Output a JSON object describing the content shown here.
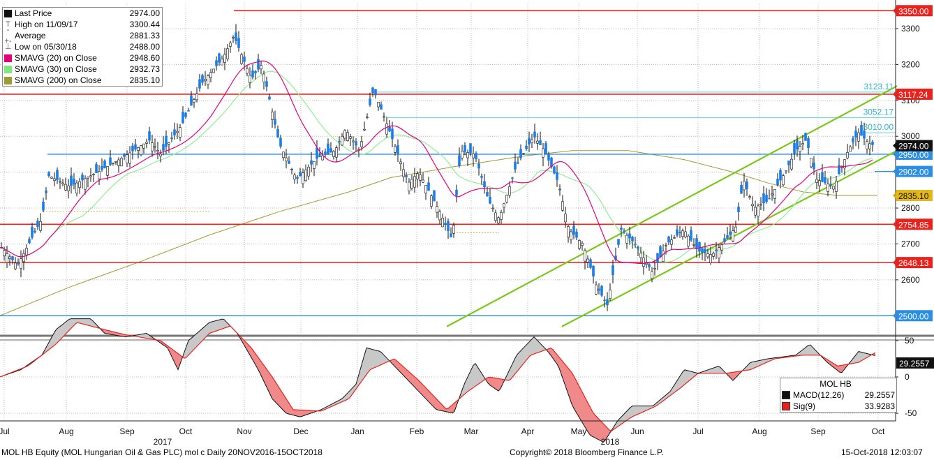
{
  "legend": [
    {
      "label": "Last Price",
      "value": "2974.00",
      "swatch": "#111111",
      "glyph": ""
    },
    {
      "label": "High on 11/09/17",
      "value": "3300.44",
      "swatch": "",
      "glyph": "T"
    },
    {
      "label": "Average",
      "value": "2881.33",
      "swatch": "",
      "glyph": "-+-"
    },
    {
      "label": "Low on 05/30/18",
      "value": "2488.00",
      "swatch": "",
      "glyph": "⊥"
    },
    {
      "label": "SMAVG (20)  on Close",
      "value": "2948.60",
      "swatch": "#e6007e",
      "glyph": ""
    },
    {
      "label": "SMAVG (30)  on Close",
      "value": "2932.73",
      "swatch": "#7ee87e",
      "glyph": ""
    },
    {
      "label": "SMAVG (200)  on Close",
      "value": "2835.10",
      "swatch": "#a09a32",
      "glyph": ""
    }
  ],
  "macd_box": {
    "title": "MOL HB",
    "rows": [
      {
        "label": "MACD(12,26)",
        "value": "29.2557",
        "color": "#111111"
      },
      {
        "label": "Sig(9)",
        "value": "33.9283",
        "color": "#e8231e"
      }
    ]
  },
  "footer": {
    "left": "MOL HB Equity (MOL Hungarian Oil & Gas PLC) mol c  Daily 20NOV2016-15OCT2018",
    "center": "Copyright© 2018 Bloomberg Finance L.P.",
    "right": "15-Oct-2018 12:03:07"
  },
  "chart_data": {
    "type": "candlestick",
    "x_months": [
      "Jul",
      "Aug",
      "Sep",
      "Oct",
      "Nov",
      "Dec",
      "Jan",
      "Feb",
      "Mar",
      "Apr",
      "May",
      "Jun",
      "Jul",
      "Aug",
      "Sep",
      "Oct"
    ],
    "x_years": [
      "2017",
      "2018"
    ],
    "ylim": [
      2450,
      3370
    ],
    "y_ticks": [
      2500,
      2600,
      2700,
      2800,
      2900,
      3000,
      3100,
      3200,
      3300
    ],
    "price_path": [
      [
        0,
        2695
      ],
      [
        25,
        2640
      ],
      [
        60,
        2770
      ],
      [
        70,
        2890
      ],
      [
        100,
        2860
      ],
      [
        140,
        2900
      ],
      [
        175,
        2940
      ],
      [
        215,
        2990
      ],
      [
        230,
        2950
      ],
      [
        260,
        3030
      ],
      [
        290,
        3150
      ],
      [
        320,
        3220
      ],
      [
        335,
        3280
      ],
      [
        360,
        3160
      ],
      [
        375,
        3200
      ],
      [
        400,
        2980
      ],
      [
        425,
        2880
      ],
      [
        455,
        2940
      ],
      [
        480,
        2960
      ],
      [
        495,
        3020
      ],
      [
        515,
        2960
      ],
      [
        535,
        3130
      ],
      [
        555,
        3030
      ],
      [
        570,
        2950
      ],
      [
        585,
        2870
      ],
      [
        600,
        2900
      ],
      [
        630,
        2790
      ],
      [
        648,
        2710
      ],
      [
        660,
        2960
      ],
      [
        680,
        2950
      ],
      [
        700,
        2820
      ],
      [
        715,
        2770
      ],
      [
        740,
        2920
      ],
      [
        765,
        3000
      ],
      [
        780,
        2960
      ],
      [
        800,
        2870
      ],
      [
        815,
        2740
      ],
      [
        835,
        2700
      ],
      [
        855,
        2580
      ],
      [
        870,
        2530
      ],
      [
        890,
        2740
      ],
      [
        910,
        2700
      ],
      [
        935,
        2620
      ],
      [
        955,
        2700
      ],
      [
        980,
        2740
      ],
      [
        1000,
        2680
      ],
      [
        1020,
        2670
      ],
      [
        1040,
        2710
      ],
      [
        1055,
        2750
      ],
      [
        1065,
        2880
      ],
      [
        1080,
        2800
      ],
      [
        1100,
        2820
      ],
      [
        1125,
        2900
      ],
      [
        1140,
        2960
      ],
      [
        1155,
        2990
      ],
      [
        1170,
        2880
      ],
      [
        1195,
        2860
      ],
      [
        1215,
        2960
      ],
      [
        1230,
        3010
      ],
      [
        1245,
        2980
      ],
      [
        1253,
        2974
      ]
    ],
    "sma200_path": [
      [
        0,
        2500
      ],
      [
        100,
        2580
      ],
      [
        200,
        2650
      ],
      [
        300,
        2725
      ],
      [
        400,
        2790
      ],
      [
        500,
        2845
      ],
      [
        560,
        2885
      ],
      [
        650,
        2915
      ],
      [
        750,
        2945
      ],
      [
        820,
        2960
      ],
      [
        900,
        2960
      ],
      [
        980,
        2935
      ],
      [
        1050,
        2900
      ],
      [
        1100,
        2870
      ],
      [
        1150,
        2845
      ],
      [
        1200,
        2835
      ],
      [
        1255,
        2835
      ]
    ],
    "horizontal_levels": [
      {
        "value": 3350,
        "label": "3350.00",
        "color": "#e8231e"
      },
      {
        "value": 3117.24,
        "label": "3117.24",
        "color": "#e8231e"
      },
      {
        "value": 2754.85,
        "label": "2754.85",
        "color": "#e8231e"
      },
      {
        "value": 2648.13,
        "label": "2648.13",
        "color": "#e8231e"
      },
      {
        "value": 2950,
        "label": "2950.00",
        "color": "#2b8ee0"
      },
      {
        "value": 2500,
        "label": "2500.00",
        "color": "#2b8ee0"
      },
      {
        "value": 2902,
        "label": "2902.00",
        "color": "#2b8ee0"
      }
    ],
    "cyan_levels": [
      {
        "value": 3123.11,
        "label": "3123.11"
      },
      {
        "value": 3052.17,
        "label": "3052.17"
      },
      {
        "value": 3010.0,
        "label": "3010.00"
      }
    ],
    "axis_tags": [
      {
        "value": 2974,
        "label": "2974.00",
        "color": "#111111"
      },
      {
        "value": 2835.1,
        "label": "2835.10",
        "color": "#a09a32"
      }
    ],
    "trend_channel": [
      {
        "from": [
          640,
          2470
        ],
        "to": [
          1285,
          3140
        ]
      },
      {
        "from": [
          805,
          2470
        ],
        "to": [
          1285,
          2960
        ]
      }
    ],
    "macd_path": [
      [
        0,
        0
      ],
      [
        30,
        10
      ],
      [
        60,
        30
      ],
      [
        80,
        65
      ],
      [
        100,
        80
      ],
      [
        130,
        80
      ],
      [
        150,
        60
      ],
      [
        180,
        55
      ],
      [
        210,
        60
      ],
      [
        240,
        40
      ],
      [
        255,
        10
      ],
      [
        270,
        50
      ],
      [
        300,
        75
      ],
      [
        320,
        80
      ],
      [
        340,
        60
      ],
      [
        370,
        10
      ],
      [
        390,
        -30
      ],
      [
        410,
        -50
      ],
      [
        430,
        -55
      ],
      [
        460,
        -45
      ],
      [
        490,
        -30
      ],
      [
        510,
        -10
      ],
      [
        525,
        40
      ],
      [
        545,
        35
      ],
      [
        570,
        10
      ],
      [
        600,
        -20
      ],
      [
        625,
        -45
      ],
      [
        650,
        -50
      ],
      [
        665,
        -10
      ],
      [
        680,
        20
      ],
      [
        700,
        -10
      ],
      [
        715,
        -20
      ],
      [
        740,
        30
      ],
      [
        765,
        55
      ],
      [
        785,
        35
      ],
      [
        800,
        15
      ],
      [
        820,
        -40
      ],
      [
        845,
        -80
      ],
      [
        865,
        -90
      ],
      [
        885,
        -60
      ],
      [
        905,
        -40
      ],
      [
        935,
        -40
      ],
      [
        960,
        -20
      ],
      [
        980,
        10
      ],
      [
        1000,
        5
      ],
      [
        1030,
        15
      ],
      [
        1050,
        -5
      ],
      [
        1075,
        20
      ],
      [
        1100,
        25
      ],
      [
        1140,
        30
      ],
      [
        1160,
        45
      ],
      [
        1185,
        20
      ],
      [
        1205,
        5
      ],
      [
        1230,
        35
      ],
      [
        1255,
        29
      ]
    ],
    "sig_path": [
      [
        0,
        0
      ],
      [
        40,
        15
      ],
      [
        80,
        45
      ],
      [
        110,
        75
      ],
      [
        150,
        65
      ],
      [
        180,
        58
      ],
      [
        230,
        50
      ],
      [
        265,
        25
      ],
      [
        300,
        60
      ],
      [
        330,
        70
      ],
      [
        360,
        40
      ],
      [
        390,
        0
      ],
      [
        420,
        -45
      ],
      [
        460,
        -47
      ],
      [
        500,
        -30
      ],
      [
        530,
        10
      ],
      [
        565,
        25
      ],
      [
        600,
        -5
      ],
      [
        640,
        -45
      ],
      [
        670,
        -20
      ],
      [
        700,
        0
      ],
      [
        730,
        -5
      ],
      [
        760,
        30
      ],
      [
        790,
        40
      ],
      [
        820,
        5
      ],
      [
        850,
        -50
      ],
      [
        875,
        -75
      ],
      [
        905,
        -55
      ],
      [
        940,
        -40
      ],
      [
        975,
        -15
      ],
      [
        1000,
        5
      ],
      [
        1040,
        5
      ],
      [
        1075,
        10
      ],
      [
        1110,
        25
      ],
      [
        1150,
        30
      ],
      [
        1175,
        30
      ],
      [
        1200,
        15
      ],
      [
        1230,
        20
      ],
      [
        1255,
        34
      ]
    ],
    "macd_ticks": [
      50,
      0,
      -50
    ]
  }
}
